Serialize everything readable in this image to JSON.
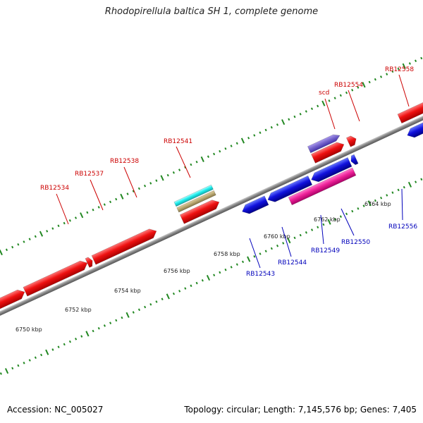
{
  "title": "Rhodopirellula baltica SH 1, complete genome",
  "accession": "Accession: NC_005027",
  "summary": "Topology: circular; Length: 7,145,576 bp; Genes: 7,405",
  "colors": {
    "forward_gene": "#ee1111",
    "reverse_gene": "#1111dd",
    "forward_label": "#cc0000",
    "reverse_label": "#0000bb",
    "backbone": "#888888",
    "ruler_tick": "#228822",
    "purple_feature": "#7766cc",
    "cyan_feature": "#22eeee",
    "tan_feature": "#bbaa77",
    "magenta_feature": "#ee2299",
    "grey_feature": "#cccccc"
  },
  "ruler_ticks": [
    "6750 kbp",
    "6752 kbp",
    "6754 kbp",
    "6756 kbp",
    "6758 kbp",
    "6760 kbp",
    "6762 kbp",
    "6764 kbp"
  ],
  "forward_gene_labels": [
    "RB12534",
    "RB12537",
    "RB12538",
    "RB12541",
    "scd",
    "RB12554",
    "RB12558"
  ],
  "reverse_gene_labels": [
    "RB12543",
    "RB12544",
    "RB12549",
    "RB12550",
    "RB12556"
  ]
}
